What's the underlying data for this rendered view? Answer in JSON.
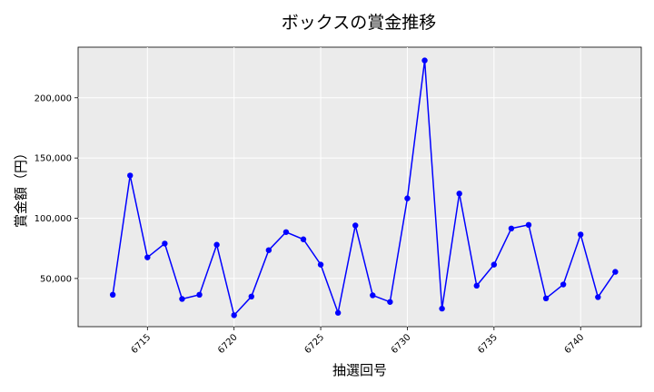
{
  "chart_data": {
    "type": "line",
    "title": "ボックスの賞金推移",
    "xlabel": "抽選回号",
    "ylabel": "賞金額（円）",
    "x_ticks": [
      6715,
      6720,
      6725,
      6730,
      6735,
      6740
    ],
    "y_ticks": [
      50000,
      100000,
      150000,
      200000
    ],
    "y_tick_labels": [
      "50,000",
      "100,000",
      "150,000",
      "200,000"
    ],
    "xlim": [
      6711,
      6743.5
    ],
    "ylim": [
      10000,
      242000
    ],
    "grid": true,
    "series_color": "#0000ff",
    "plot_background": "#ebebeb",
    "series": [
      {
        "x": [
          6713,
          6714,
          6715,
          6716,
          6717,
          6718,
          6719,
          6720,
          6721,
          6722,
          6723,
          6724,
          6725,
          6726,
          6727,
          6728,
          6729,
          6730,
          6731,
          6732,
          6733,
          6734,
          6735,
          6736,
          6737,
          6738,
          6739,
          6740,
          6741,
          6742
        ],
        "values": [
          36500,
          135500,
          67500,
          79000,
          33000,
          36500,
          78000,
          19500,
          35000,
          73500,
          88500,
          82500,
          61500,
          21500,
          94000,
          36000,
          30500,
          116500,
          231000,
          25000,
          120500,
          44000,
          61500,
          91500,
          94500,
          33500,
          45000,
          86500,
          34500,
          55500
        ]
      }
    ]
  }
}
